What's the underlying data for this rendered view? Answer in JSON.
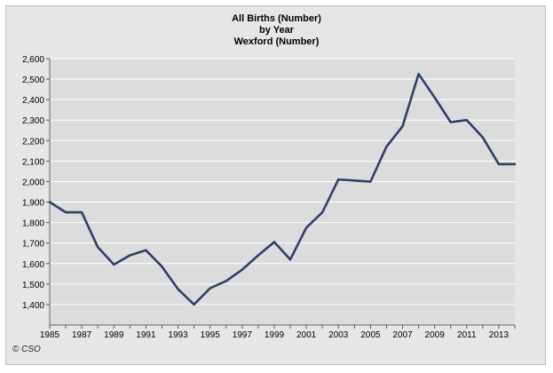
{
  "chart_data": {
    "type": "line",
    "title_lines": [
      "All Births (Number)",
      "by Year",
      "Wexford (Number)"
    ],
    "x": [
      1985,
      1986,
      1987,
      1988,
      1989,
      1990,
      1991,
      1992,
      1993,
      1994,
      1995,
      1996,
      1997,
      1998,
      1999,
      2000,
      2001,
      2002,
      2003,
      2004,
      2005,
      2006,
      2007,
      2008,
      2009,
      2010,
      2011,
      2012,
      2013,
      2014
    ],
    "series": [
      {
        "values": [
          1900,
          1850,
          1850,
          1680,
          1595,
          1640,
          1665,
          1585,
          1475,
          1400,
          1480,
          1515,
          1570,
          1640,
          1705,
          1620,
          1775,
          1850,
          2010,
          2005,
          2000,
          2170,
          2270,
          2525,
          2410,
          2290,
          2300,
          2215,
          2085,
          2085
        ]
      }
    ],
    "xlabel": "",
    "ylabel": "",
    "ylim": [
      1300,
      2600
    ],
    "yticks": [
      1400,
      1500,
      1600,
      1700,
      1800,
      1900,
      2000,
      2100,
      2200,
      2300,
      2400,
      2500,
      2600
    ],
    "ytick_labels": [
      "1,400",
      "1,500",
      "1,600",
      "1,700",
      "1,800",
      "1,900",
      "2,000",
      "2,100",
      "2,200",
      "2,300",
      "2,400",
      "2,500",
      "2,600"
    ],
    "xticks": [
      "1985",
      "1987",
      "1989",
      "1991",
      "1993",
      "1995",
      "1997",
      "1999",
      "2001",
      "2003",
      "2005",
      "2007",
      "2009",
      "2011",
      "2013"
    ],
    "grid": true,
    "colors": {
      "line": "#2f3f66",
      "plot_bg": "#dcdcdc",
      "grid": "#ffffff",
      "frame_bg": "#e6e6e6"
    }
  },
  "footer": {
    "copyright": "© CSO"
  }
}
